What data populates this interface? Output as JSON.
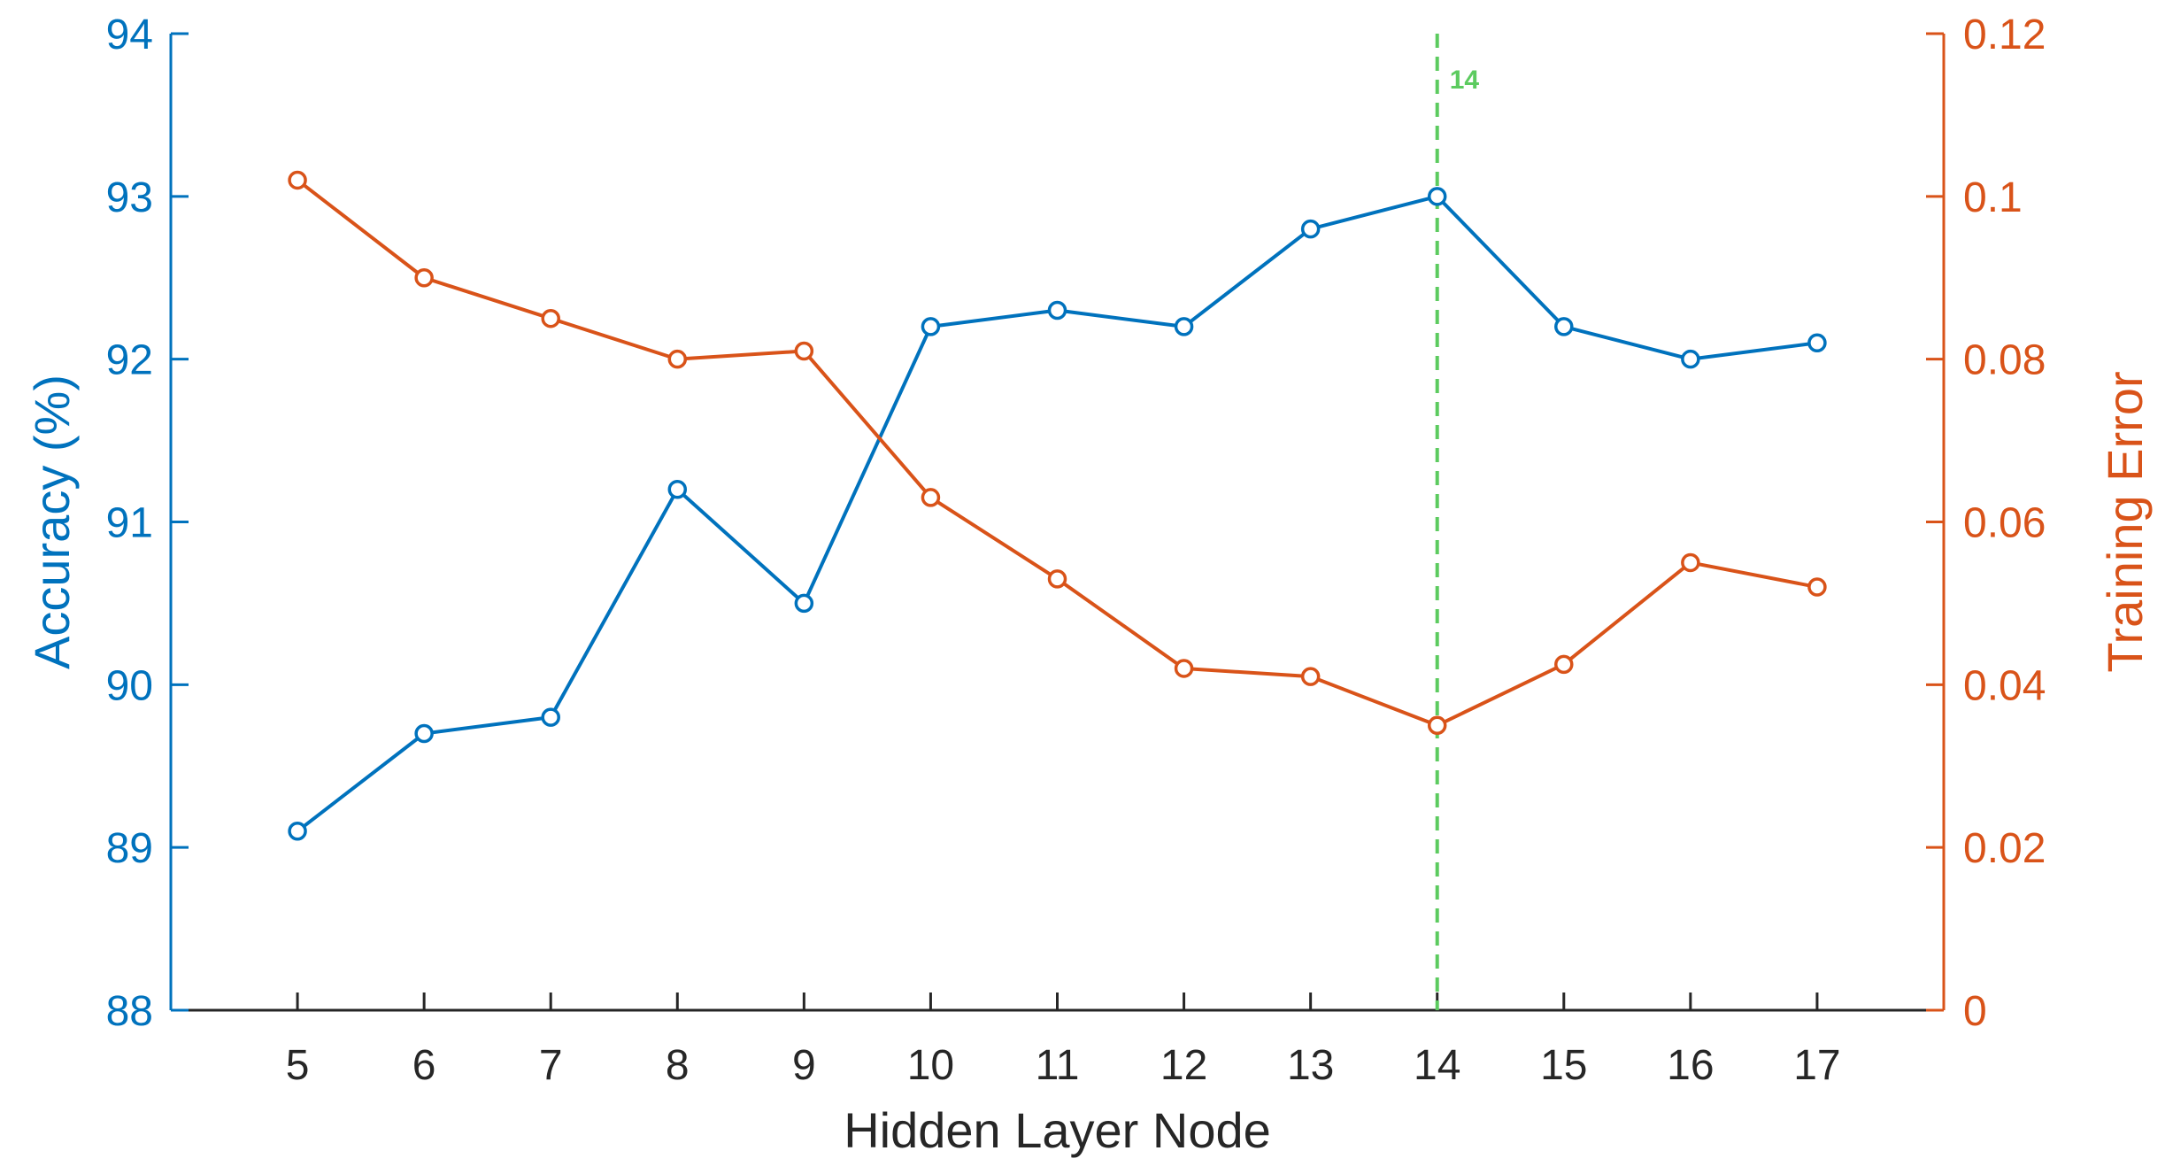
{
  "chart_data": {
    "type": "line",
    "xlabel": "Hidden Layer Node",
    "ylabel_left": "Accuracy (%)",
    "ylabel_right": "Training Error",
    "x": [
      5,
      6,
      7,
      8,
      9,
      10,
      11,
      12,
      13,
      14,
      15,
      16,
      17
    ],
    "xlim": [
      4,
      18
    ],
    "ylim_left": [
      88,
      94
    ],
    "ylim_right": [
      0,
      0.12
    ],
    "yticks_left": [
      88,
      89,
      90,
      91,
      92,
      93,
      94
    ],
    "yticks_right": [
      "0",
      "0.02",
      "0.04",
      "0.06",
      "0.08",
      "0.1",
      "0.12"
    ],
    "grid": false,
    "series": [
      {
        "axis": "left",
        "color": "#0072BD",
        "marker": "circle",
        "values": [
          89.1,
          89.7,
          89.8,
          91.2,
          90.5,
          92.2,
          92.3,
          92.2,
          92.8,
          93.0,
          92.2,
          92.0,
          92.1
        ]
      },
      {
        "axis": "right",
        "color": "#D95319",
        "marker": "circle",
        "values": [
          0.102,
          0.09,
          0.085,
          0.08,
          0.081,
          0.063,
          0.053,
          0.042,
          0.041,
          0.035,
          0.0425,
          0.055,
          0.052
        ]
      }
    ],
    "reference_line": {
      "x": 14,
      "label": "14",
      "color": "#5CCB5F",
      "style": "dashed"
    }
  },
  "colors": {
    "left_axis": "#0072BD",
    "right_axis": "#D95319",
    "x_axis": "#262626"
  }
}
